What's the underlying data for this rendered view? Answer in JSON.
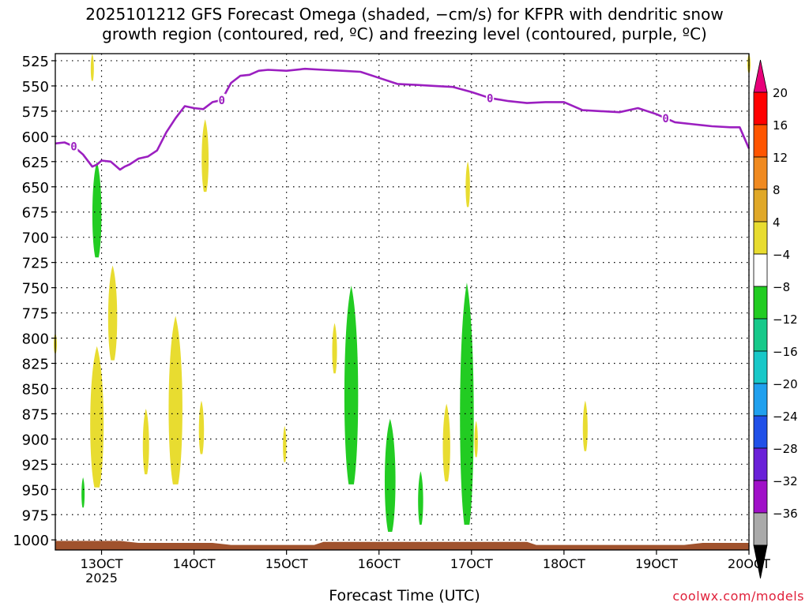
{
  "title_lines": [
    "2025101212 GFS Forecast Omega (shaded, −cm/s) for KFPR with dendritic snow",
    "growth region (contoured, red, ºC) and freezing level (contoured, purple, ºC)"
  ],
  "credit": "coolwx.com/models",
  "chart_data": {
    "type": "heatmap",
    "xlabel": "Forecast Time (UTC)",
    "x_ticks": [
      {
        "day": 13,
        "label": "13OCT",
        "sublabel": "2025"
      },
      {
        "day": 14,
        "label": "14OCT"
      },
      {
        "day": 15,
        "label": "15OCT"
      },
      {
        "day": 16,
        "label": "16OCT"
      },
      {
        "day": 17,
        "label": "17OCT"
      },
      {
        "day": 18,
        "label": "18OCT"
      },
      {
        "day": 19,
        "label": "19OCT"
      },
      {
        "day": 20,
        "label": "20OCT"
      }
    ],
    "xlim": [
      12.5,
      20.0
    ],
    "y_ticks": [
      525,
      550,
      575,
      600,
      625,
      650,
      675,
      700,
      725,
      750,
      775,
      800,
      825,
      850,
      875,
      900,
      925,
      950,
      975,
      1000
    ],
    "ylim": [
      1010,
      518
    ],
    "grid": true,
    "colorbar": {
      "labels": [
        "20",
        "16",
        "12",
        "8",
        "4",
        "−4",
        "−8",
        "−12",
        "−16",
        "−20",
        "−24",
        "−28",
        "−32",
        "−36"
      ],
      "colors": [
        "#ff0000",
        "#ff5500",
        "#f08a20",
        "#e0a828",
        "#e8dc30",
        "#ffffff",
        "#22cc22",
        "#17c98a",
        "#18c8c8",
        "#20a0ee",
        "#2050e8",
        "#6a20d8",
        "#a010c8",
        "#aaaaaa"
      ],
      "top_color": "#e8007a",
      "bottom_color": "#000000"
    },
    "freezing_level": {
      "color": "#9b1fc0",
      "contour_label": "0",
      "times": [
        12.5,
        12.6,
        12.7,
        12.8,
        12.9,
        12.95,
        13.0,
        13.1,
        13.2,
        13.25,
        13.3,
        13.4,
        13.5,
        13.6,
        13.7,
        13.8,
        13.9,
        14.0,
        14.1,
        14.2,
        14.3,
        14.4,
        14.5,
        14.6,
        14.7,
        14.8,
        15.0,
        15.2,
        15.4,
        15.6,
        15.8,
        16.0,
        16.2,
        16.4,
        16.6,
        16.8,
        17.0,
        17.2,
        17.4,
        17.6,
        17.8,
        18.0,
        18.2,
        18.4,
        18.6,
        18.8,
        19.0,
        19.2,
        19.4,
        19.6,
        19.8,
        19.9,
        20.0
      ],
      "pressure": [
        607,
        606,
        610,
        618,
        630,
        628,
        624,
        625,
        633,
        630,
        628,
        622,
        620,
        614,
        596,
        582,
        570,
        572,
        573,
        566,
        564,
        547,
        540,
        539,
        535,
        534,
        535,
        533,
        534,
        535,
        536,
        542,
        548,
        549,
        550,
        551,
        556,
        562,
        565,
        567,
        566,
        566,
        574,
        575,
        576,
        572,
        578,
        586,
        588,
        590,
        591,
        591,
        612
      ]
    },
    "omega_regions": [
      {
        "sign": "upward",
        "time": 12.9,
        "p_top": 517,
        "p_bottom": 545,
        "color": "#e8dc30"
      },
      {
        "sign": "upward",
        "time": 20.0,
        "p_top": 517,
        "p_bottom": 537,
        "color": "#e8dc30"
      },
      {
        "sign": "upward",
        "time": 12.5,
        "p_top": 795,
        "p_bottom": 815,
        "color": "#e8dc30"
      },
      {
        "sign": "downward",
        "time": 12.95,
        "p_top": 625,
        "p_bottom": 720,
        "color": "#22cc22"
      },
      {
        "sign": "upward",
        "time": 13.12,
        "p_top": 728,
        "p_bottom": 822,
        "color": "#e8dc30"
      },
      {
        "sign": "upward",
        "time": 12.95,
        "p_top": 808,
        "p_bottom": 948,
        "color": "#e8dc30"
      },
      {
        "sign": "downward",
        "time": 12.8,
        "p_top": 938,
        "p_bottom": 968,
        "color": "#22cc22"
      },
      {
        "sign": "upward",
        "time": 13.48,
        "p_top": 870,
        "p_bottom": 935,
        "color": "#e8dc30"
      },
      {
        "sign": "upward",
        "time": 13.8,
        "p_top": 778,
        "p_bottom": 945,
        "color": "#e8dc30"
      },
      {
        "sign": "upward",
        "time": 14.08,
        "p_top": 862,
        "p_bottom": 915,
        "color": "#e8dc30"
      },
      {
        "sign": "upward",
        "time": 14.12,
        "p_top": 583,
        "p_bottom": 655,
        "color": "#e8dc30"
      },
      {
        "sign": "upward",
        "time": 14.98,
        "p_top": 887,
        "p_bottom": 923,
        "color": "#e8dc30"
      },
      {
        "sign": "upward",
        "time": 15.52,
        "p_top": 785,
        "p_bottom": 835,
        "color": "#e8dc30"
      },
      {
        "sign": "downward",
        "time": 15.7,
        "p_top": 748,
        "p_bottom": 945,
        "color": "#22cc22"
      },
      {
        "sign": "downward",
        "time": 16.12,
        "p_top": 880,
        "p_bottom": 992,
        "color": "#22cc22"
      },
      {
        "sign": "downward",
        "time": 16.45,
        "p_top": 932,
        "p_bottom": 985,
        "color": "#22cc22"
      },
      {
        "sign": "upward",
        "time": 16.73,
        "p_top": 865,
        "p_bottom": 942,
        "color": "#e8dc30"
      },
      {
        "sign": "downward",
        "time": 16.95,
        "p_top": 745,
        "p_bottom": 985,
        "color": "#22cc22"
      },
      {
        "sign": "upward",
        "time": 16.96,
        "p_top": 625,
        "p_bottom": 670,
        "color": "#e8dc30"
      },
      {
        "sign": "upward",
        "time": 17.05,
        "p_top": 882,
        "p_bottom": 918,
        "color": "#e8dc30"
      },
      {
        "sign": "upward",
        "time": 18.23,
        "p_top": 862,
        "p_bottom": 912,
        "color": "#e8dc30"
      }
    ]
  }
}
